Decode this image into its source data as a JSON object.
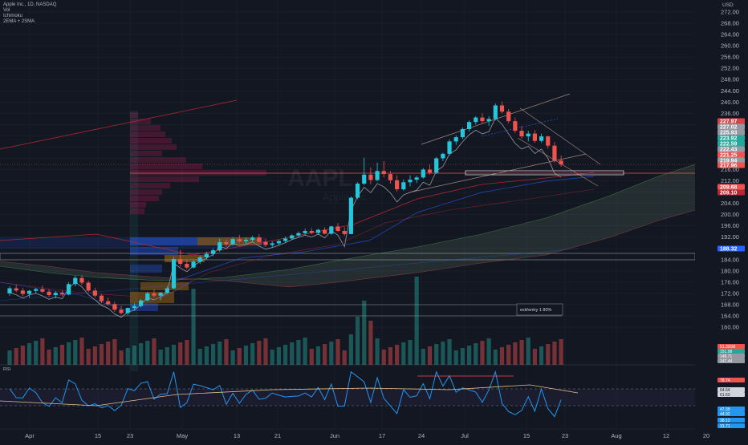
{
  "header": {
    "symbol_line": "Apple Inc., 1D, NASDAQ",
    "indicators": [
      "Vol",
      "Ichimoku",
      "2EMA + 2SMA"
    ],
    "currency": "USD"
  },
  "watermark": {
    "ticker": "AAPL",
    "name": "Apple Inc."
  },
  "annotation": {
    "text": "exit/entry 1  80%"
  },
  "rsi_label": "RSI",
  "chart_data": {
    "type": "candlestick",
    "y_axis": {
      "min": 158,
      "max": 274,
      "ticks": [
        "160.00",
        "164.00",
        "168.00",
        "172.00",
        "176.00",
        "180.00",
        "184.00",
        "188.00",
        "192.00",
        "196.00",
        "200.00",
        "204.00",
        "208.00",
        "212.00",
        "216.00",
        "220.00",
        "224.00",
        "228.00",
        "232.00",
        "236.00",
        "240.00",
        "244.00",
        "248.00",
        "252.00",
        "256.00",
        "260.00",
        "264.00",
        "268.00",
        "272.00"
      ]
    },
    "x_axis": {
      "ticks": [
        "Apr",
        "15",
        "23",
        "May",
        "13",
        "21",
        "Jun",
        "17",
        "24",
        "Jul",
        "15",
        "23",
        "Aug",
        "12",
        "20"
      ]
    },
    "candles": [
      [
        172.0,
        174.5,
        171.2,
        173.8
      ],
      [
        173.8,
        175.2,
        172.5,
        173.0
      ],
      [
        173.0,
        174.0,
        171.0,
        171.8
      ],
      [
        171.8,
        173.2,
        170.5,
        172.9
      ],
      [
        172.9,
        174.0,
        171.9,
        173.5
      ],
      [
        173.5,
        174.8,
        172.2,
        172.6
      ],
      [
        172.6,
        173.5,
        170.8,
        171.4
      ],
      [
        171.4,
        172.8,
        170.2,
        172.2
      ],
      [
        172.2,
        173.2,
        171.0,
        171.6
      ],
      [
        171.6,
        176.0,
        171.3,
        175.3
      ],
      [
        175.3,
        178.3,
        174.5,
        177.5
      ],
      [
        177.5,
        178.5,
        175.0,
        175.8
      ],
      [
        175.8,
        176.5,
        172.5,
        173.0
      ],
      [
        173.0,
        174.0,
        170.5,
        171.2
      ],
      [
        171.2,
        171.8,
        168.5,
        169.2
      ],
      [
        169.2,
        170.5,
        167.8,
        168.2
      ],
      [
        168.2,
        169.0,
        165.5,
        166.2
      ],
      [
        166.2,
        167.5,
        164.5,
        165.0
      ],
      [
        165.0,
        167.0,
        164.2,
        166.8
      ],
      [
        166.8,
        168.5,
        165.8,
        167.5
      ],
      [
        167.5,
        170.0,
        167.0,
        169.5
      ],
      [
        169.5,
        172.5,
        169.2,
        172.0
      ],
      [
        172.0,
        173.5,
        170.5,
        171.2
      ],
      [
        171.2,
        172.5,
        169.5,
        172.2
      ],
      [
        172.2,
        174.5,
        171.8,
        173.8
      ],
      [
        173.8,
        185.0,
        173.5,
        184.2
      ],
      [
        184.2,
        187.5,
        181.5,
        182.5
      ],
      [
        182.5,
        184.0,
        180.5,
        181.2
      ],
      [
        181.2,
        183.8,
        180.8,
        183.3
      ],
      [
        183.3,
        185.5,
        182.5,
        184.8
      ],
      [
        184.8,
        186.8,
        184.0,
        186.0
      ],
      [
        186.0,
        188.0,
        185.2,
        187.3
      ],
      [
        187.3,
        191.5,
        186.8,
        190.2
      ],
      [
        190.2,
        191.2,
        188.5,
        189.5
      ],
      [
        189.5,
        192.0,
        189.0,
        191.3
      ],
      [
        191.3,
        192.8,
        190.0,
        190.5
      ],
      [
        190.5,
        191.8,
        189.5,
        191.0
      ],
      [
        191.0,
        192.5,
        190.2,
        191.8
      ],
      [
        191.8,
        193.0,
        190.0,
        190.3
      ],
      [
        190.3,
        191.5,
        188.5,
        189.2
      ],
      [
        189.2,
        190.5,
        188.2,
        189.8
      ],
      [
        189.8,
        191.0,
        189.0,
        190.6
      ],
      [
        190.6,
        192.2,
        190.1,
        191.5
      ],
      [
        191.5,
        193.0,
        191.0,
        192.6
      ],
      [
        192.6,
        194.0,
        192.0,
        193.4
      ],
      [
        193.4,
        195.0,
        192.6,
        194.2
      ],
      [
        194.2,
        195.2,
        193.0,
        193.5
      ],
      [
        193.5,
        195.0,
        192.8,
        194.6
      ],
      [
        194.6,
        195.5,
        193.0,
        193.2
      ],
      [
        193.2,
        196.0,
        192.8,
        195.8
      ],
      [
        195.8,
        197.0,
        193.8,
        194.2
      ],
      [
        194.2,
        195.5,
        192.5,
        193.1
      ],
      [
        193.1,
        206.5,
        193.0,
        206.0
      ],
      [
        206.0,
        211.5,
        205.5,
        211.0
      ],
      [
        211.0,
        220.2,
        210.5,
        214.2
      ],
      [
        214.2,
        216.8,
        210.8,
        212.3
      ],
      [
        212.3,
        218.5,
        211.8,
        215.5
      ],
      [
        215.5,
        219.0,
        213.2,
        214.4
      ],
      [
        214.4,
        215.5,
        211.0,
        212.2
      ],
      [
        212.2,
        214.0,
        208.2,
        209.0
      ],
      [
        209.0,
        212.5,
        208.5,
        211.5
      ],
      [
        211.5,
        214.0,
        210.0,
        212.4
      ],
      [
        212.4,
        213.8,
        211.2,
        213.2
      ],
      [
        213.2,
        216.5,
        212.8,
        216.0
      ],
      [
        216.0,
        217.8,
        214.2,
        214.9
      ],
      [
        214.9,
        220.5,
        214.5,
        220.0
      ],
      [
        220.0,
        222.0,
        219.0,
        221.6
      ],
      [
        221.6,
        226.8,
        221.0,
        226.0
      ],
      [
        226.0,
        228.2,
        224.8,
        227.5
      ],
      [
        227.5,
        231.0,
        226.8,
        230.4
      ],
      [
        230.4,
        233.5,
        229.5,
        232.9
      ],
      [
        232.9,
        235.0,
        232.0,
        234.5
      ],
      [
        234.5,
        236.0,
        232.5,
        233.2
      ],
      [
        233.2,
        235.0,
        231.5,
        234.0
      ],
      [
        234.0,
        239.5,
        233.5,
        238.8
      ],
      [
        238.8,
        240.2,
        236.0,
        236.6
      ],
      [
        236.6,
        237.5,
        232.5,
        233.2
      ],
      [
        233.2,
        234.5,
        229.0,
        229.8
      ],
      [
        229.8,
        231.5,
        227.0,
        227.8
      ],
      [
        227.8,
        229.8,
        226.0,
        228.8
      ],
      [
        228.8,
        230.0,
        225.5,
        226.2
      ],
      [
        226.2,
        228.8,
        225.5,
        227.8
      ],
      [
        227.8,
        228.0,
        223.5,
        224.5
      ],
      [
        224.5,
        225.8,
        218.5,
        219.2
      ],
      [
        219.2,
        221.0,
        217.0,
        217.8
      ]
    ],
    "price_labels": [
      {
        "value": "227.97",
        "color": "#d4444b"
      },
      {
        "value": "227.02",
        "color": "#9598a1"
      },
      {
        "value": "225.93",
        "color": "#9598a1"
      },
      {
        "value": "223.92",
        "color": "#26a69a"
      },
      {
        "value": "222.59",
        "color": "#26a69a"
      },
      {
        "value": "222.43",
        "color": "#9598a1"
      },
      {
        "value": "221.25",
        "color": "#ef5350"
      },
      {
        "value": "219.94",
        "color": "#9598a1"
      },
      {
        "value": "217.96",
        "color": "#ef5350"
      },
      {
        "value": "209.68",
        "color": "#ef5350"
      },
      {
        "value": "209.10",
        "color": "#b22833"
      },
      {
        "value": "188.32",
        "color": "#2962ff"
      }
    ],
    "volume_labels": [
      {
        "value": "51.391M",
        "color": "#ef5350"
      },
      {
        "value": "151.98",
        "color": "#26a69a"
      },
      {
        "value": "148.71",
        "color": "#9598a1"
      },
      {
        "value": "147.44",
        "color": "#9598a1"
      }
    ],
    "rsi_labels": [
      {
        "value": "78.74",
        "color": "#ef5350"
      },
      {
        "value": "64.64",
        "color": "#d1d4dc"
      },
      {
        "value": "61.63",
        "color": "#d1d4dc"
      },
      {
        "value": "47.39",
        "color": "#2196f3"
      },
      {
        "value": "44.92",
        "color": "#2196f3"
      },
      {
        "value": "38.12",
        "color": "#2196f3"
      },
      {
        "value": "31.71",
        "color": "#2196f3"
      }
    ]
  }
}
